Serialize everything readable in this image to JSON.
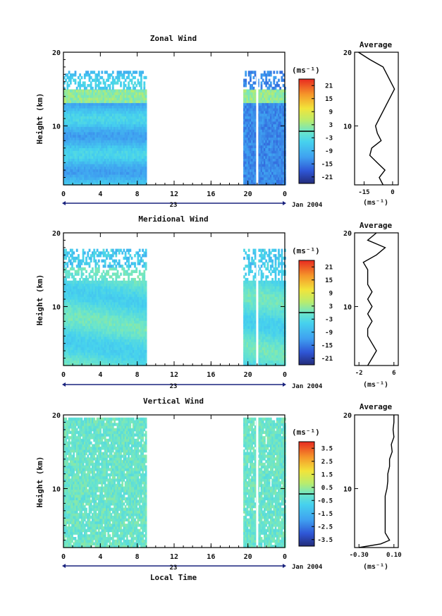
{
  "figure": {
    "date_label": "Jan 2004",
    "xlabel_bottom": "Local Time"
  },
  "chart_data": [
    {
      "type": "heatmap",
      "title": "Zonal Wind",
      "ylabel": "Height (km)",
      "ylim": [
        2,
        20
      ],
      "yticks": [
        "10",
        "20"
      ],
      "xticks": [
        "0",
        "4",
        "8",
        "12",
        "16",
        "20",
        "0"
      ],
      "xlim": [
        0,
        24
      ],
      "day_label": "23",
      "data_segments": [
        [
          0,
          9
        ],
        [
          19.5,
          24
        ]
      ],
      "colorbar": {
        "unit": "(ms⁻¹)",
        "tick_labels": [
          "21",
          "15",
          "9",
          "3",
          "-3",
          "-9",
          "-15",
          "-21"
        ],
        "range": [
          -24,
          24
        ],
        "contour_at": 0
      },
      "profile": {
        "title": "Average",
        "xlabel": "(ms⁻¹)",
        "xticks": [
          "-15",
          "0"
        ],
        "xlim": [
          -20,
          3
        ],
        "yticks": [
          "10",
          "20"
        ],
        "heights": [
          2,
          3,
          4,
          5,
          6,
          7,
          8,
          9,
          10,
          11,
          12,
          13,
          14,
          15,
          16,
          17,
          18,
          19,
          20
        ],
        "values": [
          -5,
          -7,
          -4,
          -8,
          -12,
          -11,
          -6,
          -8,
          -9,
          -7,
          -5,
          -3,
          -1,
          1,
          -1,
          -3,
          -5,
          -12,
          -18
        ]
      }
    },
    {
      "type": "heatmap",
      "title": "Meridional Wind",
      "ylabel": "Height (km)",
      "ylim": [
        2,
        20
      ],
      "yticks": [
        "10",
        "20"
      ],
      "xticks": [
        "0",
        "4",
        "8",
        "12",
        "16",
        "20",
        "0"
      ],
      "xlim": [
        0,
        24
      ],
      "day_label": "23",
      "data_segments": [
        [
          0,
          9
        ],
        [
          19.5,
          24
        ]
      ],
      "colorbar": {
        "unit": "(ms⁻¹)",
        "tick_labels": [
          "21",
          "15",
          "9",
          "3",
          "-3",
          "-9",
          "-15",
          "-21"
        ],
        "range": [
          -24,
          24
        ],
        "contour_at": 0
      },
      "profile": {
        "title": "Average",
        "xlabel": "(ms⁻¹)",
        "xticks": [
          "-2",
          "6"
        ],
        "xlim": [
          -3,
          7
        ],
        "yticks": [
          "10",
          "20"
        ],
        "heights": [
          2,
          3,
          4,
          5,
          6,
          7,
          8,
          9,
          10,
          11,
          12,
          13,
          14,
          15,
          16,
          17,
          18,
          19,
          20
        ],
        "values": [
          0,
          1,
          2,
          1,
          0,
          0,
          1,
          0,
          1,
          0,
          1,
          0,
          0,
          0,
          -1,
          2,
          4,
          0,
          2
        ]
      }
    },
    {
      "type": "heatmap",
      "title": "Vertical Wind",
      "ylabel": "Height (km)",
      "ylim": [
        2,
        20
      ],
      "yticks": [
        "10",
        "20"
      ],
      "xticks": [
        "0",
        "4",
        "8",
        "12",
        "16",
        "20",
        "0"
      ],
      "xlim": [
        0,
        24
      ],
      "day_label": "23",
      "data_segments": [
        [
          0,
          9
        ],
        [
          19.5,
          24
        ]
      ],
      "colorbar": {
        "unit": "(ms⁻¹)",
        "tick_labels": [
          "3.5",
          "2.5",
          "1.5",
          "0.5",
          "-0.5",
          "-1.5",
          "-2.5",
          "-3.5"
        ],
        "range": [
          -4,
          4
        ],
        "contour_at": 0
      },
      "profile": {
        "title": "Average",
        "xlabel": "(ms⁻¹)",
        "xticks": [
          "-0.30",
          "0.10"
        ],
        "xlim": [
          -0.35,
          0.15
        ],
        "yticks": [
          "10",
          "20"
        ],
        "heights": [
          2,
          2.5,
          3,
          4,
          5,
          6,
          7,
          8,
          9,
          10,
          11,
          12,
          13,
          14,
          15,
          16,
          17,
          18,
          19,
          20
        ],
        "values": [
          -0.3,
          -0.05,
          0.05,
          0,
          0,
          0,
          0,
          0,
          0,
          0.02,
          0.03,
          0.03,
          0.05,
          0.05,
          0.08,
          0.07,
          0.1,
          0.09,
          0.1,
          0.1
        ]
      }
    }
  ]
}
